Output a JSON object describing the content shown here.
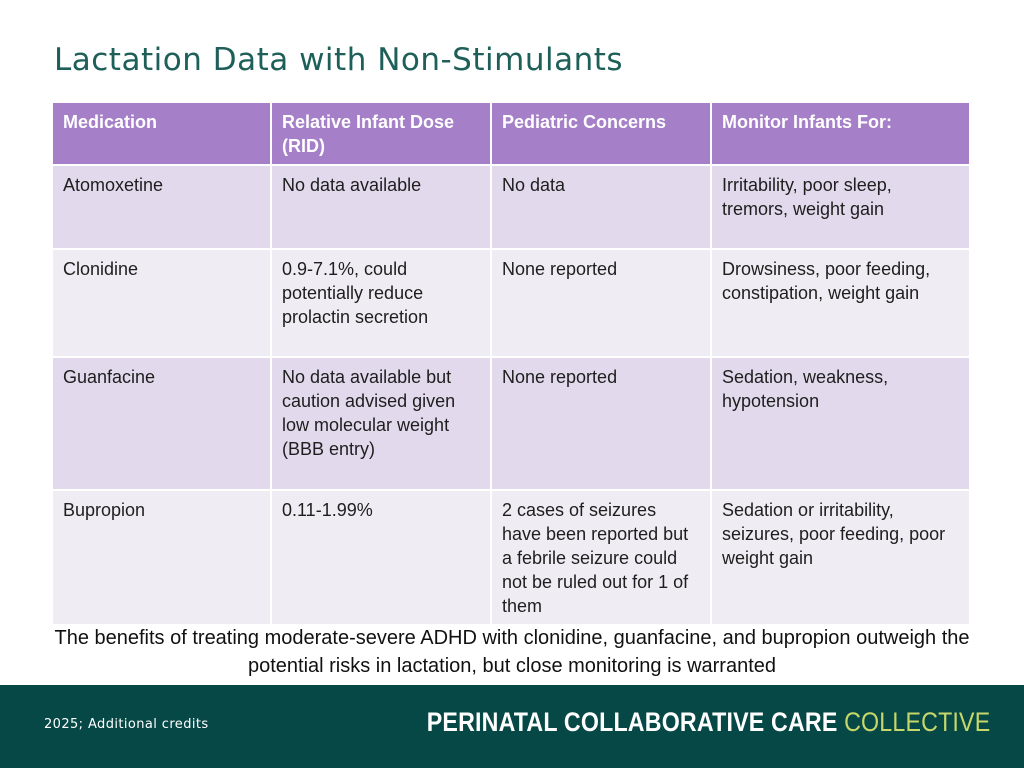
{
  "title": "Lactation Data with Non-Stimulants",
  "table": {
    "headers": [
      "Medication",
      "Relative Infant Dose (RID)",
      "Pediatric Concerns",
      "Monitor Infants For:"
    ],
    "rows": [
      [
        "Atomoxetine",
        "No data available",
        "No data",
        "Irritability, poor sleep, tremors, weight gain"
      ],
      [
        "Clonidine",
        "0.9-7.1%, could potentially reduce prolactin secretion",
        "None reported",
        "Drowsiness, poor feeding, constipation, weight gain"
      ],
      [
        "Guanfacine",
        "No data available but caution advised given low molecular weight (BBB entry)",
        "None reported",
        "Sedation, weakness, hypotension"
      ],
      [
        "Bupropion",
        "0.11-1.99%",
        "2 cases of seizures have been reported but a febrile seizure could not be ruled out for 1 of them",
        "Sedation or irritability, seizures, poor feeding, poor weight gain"
      ]
    ]
  },
  "note": "The benefits of treating moderate-severe ADHD with clonidine, guanfacine, and bupropion outweigh the potential risks in lactation, but close monitoring is warranted",
  "footer": {
    "credits": "2025; Additional credits",
    "logo_strong": "PERINATAL COLLABORATIVE CARE",
    "logo_accent": "COLLECTIVE"
  },
  "colors": {
    "title": "#1f5f5a",
    "header_bg": "#a57fc7",
    "row_odd": "#e2d9ec",
    "row_even": "#efecf3",
    "footer_bg": "#064846",
    "logo_accent": "#c7d76a"
  }
}
